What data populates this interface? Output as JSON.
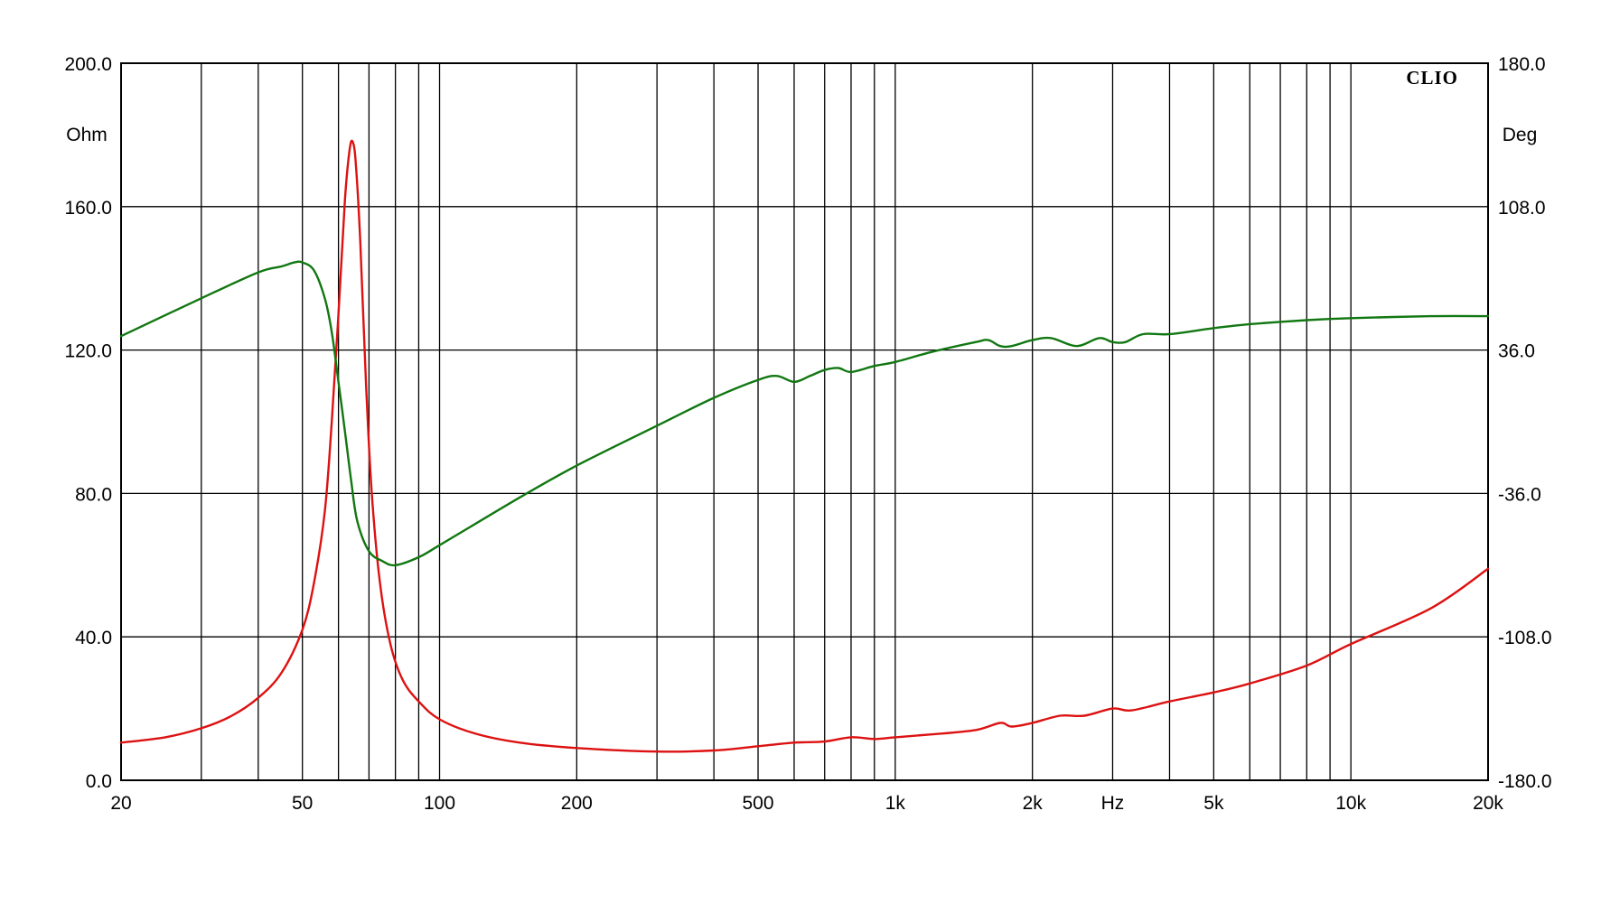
{
  "chart_data": {
    "type": "line",
    "brand": "CLIO",
    "xscale": "log",
    "xlim": [
      20,
      20000
    ],
    "ylim_left": [
      0,
      200
    ],
    "ylim_right": [
      -180,
      180
    ],
    "grid": true,
    "left_unit": "Ohm",
    "right_unit": "Deg",
    "x_unit": "Hz",
    "x_ticks": [
      {
        "value": 20,
        "label": "20"
      },
      {
        "value": 50,
        "label": "50"
      },
      {
        "value": 100,
        "label": "100"
      },
      {
        "value": 200,
        "label": "200"
      },
      {
        "value": 500,
        "label": "500"
      },
      {
        "value": 1000,
        "label": "1k"
      },
      {
        "value": 2000,
        "label": "2k"
      },
      {
        "value": 5000,
        "label": "5k"
      },
      {
        "value": 10000,
        "label": "10k"
      },
      {
        "value": 20000,
        "label": "20k"
      }
    ],
    "x_unit_position": 3000,
    "x_grid": [
      30,
      40,
      50,
      60,
      70,
      80,
      90,
      100,
      200,
      300,
      400,
      500,
      600,
      700,
      800,
      900,
      1000,
      2000,
      3000,
      4000,
      5000,
      6000,
      7000,
      8000,
      9000,
      10000,
      20000
    ],
    "y_left_ticks": [
      "0.0",
      "40.0",
      "80.0",
      "120.0",
      "160.0",
      "200.0"
    ],
    "y_right_ticks": [
      "-180.0",
      "-108.0",
      "-36.0",
      "36.0",
      "108.0",
      "180.0"
    ],
    "series": [
      {
        "axis": "left",
        "color": "#dd1111",
        "points": [
          [
            20,
            10.5
          ],
          [
            25,
            12
          ],
          [
            30,
            14.5
          ],
          [
            35,
            18
          ],
          [
            40,
            23
          ],
          [
            45,
            30
          ],
          [
            50,
            42
          ],
          [
            53,
            55
          ],
          [
            56,
            75
          ],
          [
            58,
            100
          ],
          [
            60,
            130
          ],
          [
            62,
            162
          ],
          [
            63.5,
            176
          ],
          [
            64.5,
            178
          ],
          [
            65.5,
            172
          ],
          [
            67,
            150
          ],
          [
            69,
            110
          ],
          [
            71,
            80
          ],
          [
            74,
            55
          ],
          [
            78,
            38
          ],
          [
            83,
            28
          ],
          [
            90,
            22
          ],
          [
            100,
            17
          ],
          [
            120,
            13
          ],
          [
            150,
            10.5
          ],
          [
            200,
            9
          ],
          [
            300,
            8
          ],
          [
            400,
            8.3
          ],
          [
            500,
            9.5
          ],
          [
            600,
            10.5
          ],
          [
            700,
            10.8
          ],
          [
            800,
            12
          ],
          [
            900,
            11.5
          ],
          [
            1000,
            12
          ],
          [
            1200,
            12.8
          ],
          [
            1500,
            14
          ],
          [
            1700,
            16
          ],
          [
            1800,
            15
          ],
          [
            2000,
            16
          ],
          [
            2300,
            18
          ],
          [
            2600,
            18
          ],
          [
            3000,
            20
          ],
          [
            3300,
            19.5
          ],
          [
            4000,
            22
          ],
          [
            5000,
            24.5
          ],
          [
            6000,
            27
          ],
          [
            8000,
            32
          ],
          [
            10000,
            38
          ],
          [
            15000,
            48
          ],
          [
            20000,
            59
          ]
        ]
      },
      {
        "axis": "right",
        "color": "#117711",
        "points": [
          [
            20,
            43
          ],
          [
            30,
            62
          ],
          [
            40,
            75
          ],
          [
            45,
            78
          ],
          [
            48,
            80
          ],
          [
            50,
            80
          ],
          [
            53,
            76
          ],
          [
            56,
            62
          ],
          [
            58,
            45
          ],
          [
            60,
            20
          ],
          [
            62,
            -5
          ],
          [
            64,
            -30
          ],
          [
            66,
            -50
          ],
          [
            70,
            -65
          ],
          [
            75,
            -70
          ],
          [
            80,
            -72
          ],
          [
            90,
            -68
          ],
          [
            100,
            -62
          ],
          [
            150,
            -38
          ],
          [
            200,
            -22
          ],
          [
            300,
            -2
          ],
          [
            400,
            12
          ],
          [
            500,
            21
          ],
          [
            550,
            23
          ],
          [
            600,
            20
          ],
          [
            650,
            23
          ],
          [
            700,
            26
          ],
          [
            750,
            27
          ],
          [
            800,
            25
          ],
          [
            900,
            28
          ],
          [
            1000,
            30
          ],
          [
            1200,
            35
          ],
          [
            1500,
            40
          ],
          [
            1600,
            41
          ],
          [
            1700,
            38
          ],
          [
            1800,
            38
          ],
          [
            2000,
            41
          ],
          [
            2200,
            42
          ],
          [
            2500,
            38
          ],
          [
            2800,
            42
          ],
          [
            3000,
            40
          ],
          [
            3200,
            40
          ],
          [
            3500,
            44
          ],
          [
            4000,
            44
          ],
          [
            5000,
            47
          ],
          [
            6000,
            49
          ],
          [
            8000,
            51
          ],
          [
            10000,
            52
          ],
          [
            15000,
            53
          ],
          [
            20000,
            53
          ]
        ]
      }
    ]
  }
}
